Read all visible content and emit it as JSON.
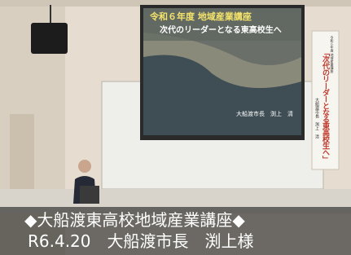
{
  "slide": {
    "title": "令和６年度 地域産業講座",
    "subtitle": "次代のリーダーとなる東高校生へ",
    "speaker": "大船渡市長　渕上　清"
  },
  "banner": {
    "header": "令和６年度 地域産業講座",
    "title": "「次代のリーダーとなる東高校生へ」",
    "speaker": "大船渡市長　渕上　清"
  },
  "caption": {
    "line1": "◆大船渡東高校地域産業講座◆",
    "line2": "R6.4.20　大船渡市長　渕上様"
  }
}
